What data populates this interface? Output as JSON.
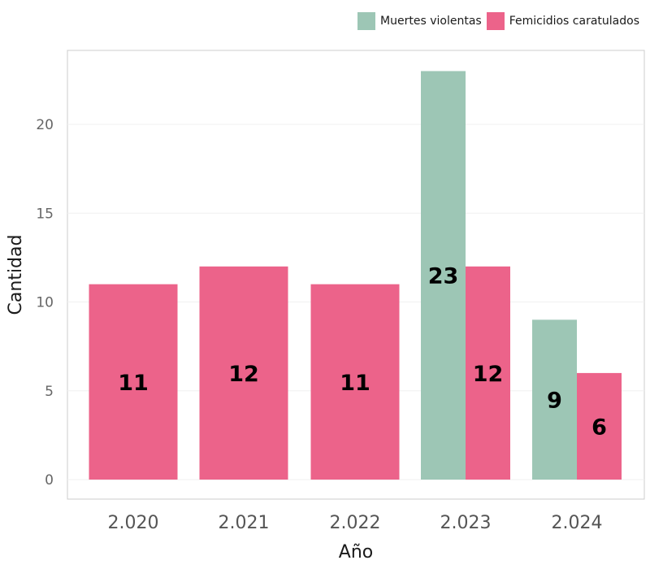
{
  "legend": {
    "items": [
      {
        "label": "Muertes violentas",
        "color": "#9dc6b5"
      },
      {
        "label": "Femicidios caratulados",
        "color": "#ec638a"
      }
    ]
  },
  "chart_data": {
    "type": "bar",
    "categories": [
      "2.020",
      "2.021",
      "2.022",
      "2.023",
      "2.024"
    ],
    "series": [
      {
        "name": "Muertes violentas",
        "color": "#9dc6b5",
        "values": [
          null,
          null,
          null,
          23,
          9
        ]
      },
      {
        "name": "Femicidios caratulados",
        "color": "#ec638a",
        "values": [
          11,
          12,
          11,
          12,
          6
        ]
      }
    ],
    "xlabel": "Año",
    "ylabel": "Cantidad",
    "ylim": [
      0,
      23
    ],
    "yticks": [
      0,
      5,
      10,
      15,
      20
    ],
    "grid": true,
    "legend_position": "top-right",
    "data_labels": true
  }
}
